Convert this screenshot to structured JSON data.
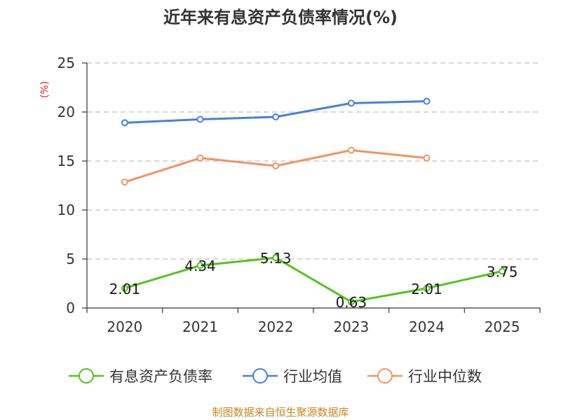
{
  "chart_data": {
    "type": "line",
    "title": "近年来有息资产负债率情况(%)",
    "ylabel": "(%)",
    "xlabel": "",
    "categories": [
      "2020",
      "2021",
      "2022",
      "2023",
      "2024",
      "2025"
    ],
    "ylim": [
      0,
      25
    ],
    "yticks": [
      "0",
      "5",
      "10",
      "15",
      "20",
      "25"
    ],
    "grid": true,
    "legend_position": "bottom",
    "series": [
      {
        "name": "有息资产负债率",
        "color": "#52c41a",
        "values": [
          2.01,
          4.34,
          5.13,
          0.63,
          2.01,
          3.75
        ],
        "labels": [
          "2.01",
          "4.34",
          "5.13",
          "0.63",
          "2.01",
          "3.75"
        ]
      },
      {
        "name": "行业均值",
        "color": "#4a7fdb",
        "values": [
          18.9,
          19.25,
          19.5,
          20.9,
          21.1,
          null
        ]
      },
      {
        "name": "行业中位数",
        "color": "#f59262",
        "values": [
          12.85,
          15.3,
          14.5,
          16.1,
          15.3,
          null
        ]
      }
    ]
  },
  "source_text": "制图数据来自恒生聚源数据库"
}
